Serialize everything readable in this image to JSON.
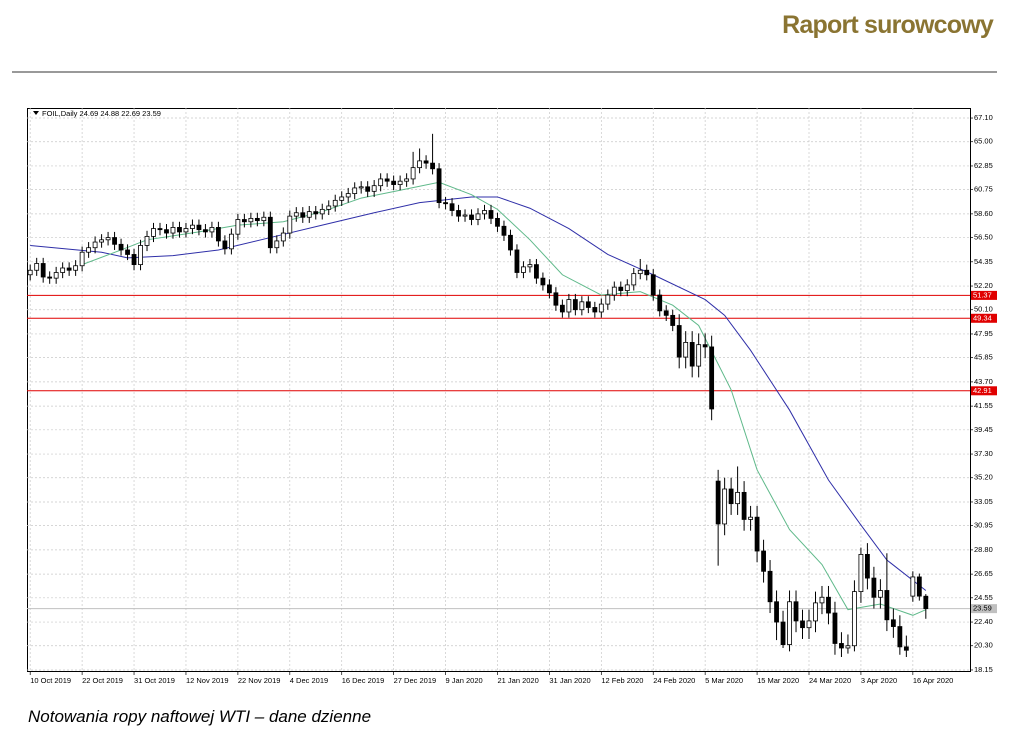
{
  "header": {
    "title": "Raport surowcowy"
  },
  "caption": "Notowania ropy naftowej WTI – dane dzienne",
  "chart_data": {
    "type": "candlestick",
    "symbol": "FOIL,Daily",
    "categories": [
      "10 Oct 2019",
      null,
      null,
      null,
      null,
      null,
      null,
      null,
      "22 Oct 2019",
      null,
      null,
      null,
      null,
      null,
      null,
      null,
      "31 Oct 2019",
      null,
      null,
      null,
      null,
      null,
      null,
      null,
      "12 Nov 2019",
      null,
      null,
      null,
      null,
      null,
      null,
      null,
      "22 Nov 2019",
      null,
      null,
      null,
      null,
      null,
      null,
      null,
      "4 Dec 2019",
      null,
      null,
      null,
      null,
      null,
      null,
      null,
      "16 Dec 2019",
      null,
      null,
      null,
      null,
      null,
      null,
      null,
      "27 Dec 2019",
      null,
      null,
      null,
      null,
      null,
      null,
      null,
      "9 Jan 2020",
      null,
      null,
      null,
      null,
      null,
      null,
      null,
      "21 Jan 2020",
      null,
      null,
      null,
      null,
      null,
      null,
      null,
      "31 Jan 2020",
      null,
      null,
      null,
      null,
      null,
      null,
      null,
      "12 Feb 2020",
      null,
      null,
      null,
      null,
      null,
      null,
      null,
      "24 Feb 2020",
      null,
      null,
      null,
      null,
      null,
      null,
      null,
      "5 Mar 2020",
      null,
      null,
      null,
      null,
      null,
      null,
      null,
      "15 Mar 2020",
      null,
      null,
      null,
      null,
      null,
      null,
      null,
      "24 Mar 2020",
      null,
      null,
      null,
      null,
      null,
      null,
      null,
      "3 Apr 2020",
      null,
      null,
      null,
      null,
      null,
      null,
      null,
      "16 Apr 2020",
      null,
      null
    ],
    "open": [
      53.2,
      53.6,
      54.2,
      53.0,
      52.9,
      53.4,
      53.8,
      53.6,
      54.0,
      55.2,
      55.6,
      56.1,
      56.3,
      56.5,
      55.9,
      55.4,
      55.0,
      54.1,
      55.8,
      56.6,
      57.3,
      57.2,
      56.9,
      57.4,
      57.0,
      57.3,
      57.6,
      57.2,
      57.0,
      57.4,
      56.2,
      55.5,
      56.8,
      58.1,
      57.9,
      58.2,
      58.0,
      58.3,
      55.6,
      56.2,
      56.9,
      58.4,
      58.7,
      58.3,
      58.8,
      58.6,
      59.0,
      59.3,
      59.8,
      60.1,
      60.4,
      60.9,
      61.0,
      60.6,
      61.1,
      61.7,
      61.5,
      61.2,
      61.5,
      61.7,
      62.7,
      63.3,
      63.1,
      62.6,
      59.6,
      59.5,
      58.9,
      58.4,
      58.5,
      58.1,
      58.6,
      58.9,
      58.2,
      57.5,
      56.7,
      55.4,
      53.4,
      53.9,
      54.1,
      52.9,
      52.3,
      51.6,
      50.5,
      49.9,
      51.0,
      50.1,
      50.8,
      50.3,
      49.9,
      50.6,
      51.4,
      52.1,
      51.8,
      52.3,
      53.3,
      53.6,
      53.2,
      51.4,
      50.0,
      49.6,
      48.7,
      45.9,
      47.2,
      45.1,
      47.0,
      46.8,
      34.9,
      31.1,
      34.2,
      32.9,
      33.9,
      31.5,
      31.7,
      28.7,
      26.9,
      24.2,
      22.4,
      20.4,
      24.2,
      22.5,
      21.9,
      22.5,
      24.1,
      24.6,
      23.2,
      20.5,
      20.1,
      20.3,
      25.1,
      28.4,
      26.3,
      24.6,
      25.2,
      22.6,
      22.0,
      20.2,
      24.7,
      26.4,
      24.69
    ],
    "high": [
      54.1,
      54.7,
      54.7,
      53.5,
      53.9,
      54.3,
      54.3,
      54.5,
      55.7,
      56.1,
      56.6,
      56.8,
      57.0,
      57.0,
      56.4,
      55.9,
      55.5,
      56.3,
      57.1,
      57.8,
      57.8,
      57.7,
      57.9,
      57.9,
      57.8,
      58.1,
      58.1,
      57.7,
      57.9,
      57.9,
      56.7,
      57.3,
      58.6,
      58.6,
      58.7,
      58.7,
      58.8,
      58.8,
      56.7,
      57.4,
      58.9,
      59.2,
      59.2,
      59.3,
      59.3,
      59.5,
      59.8,
      60.3,
      60.6,
      60.9,
      61.4,
      61.5,
      61.5,
      61.6,
      62.2,
      62.2,
      62.0,
      62.0,
      62.2,
      64.1,
      64.4,
      63.8,
      65.7,
      63.1,
      60.1,
      60.0,
      59.4,
      59.0,
      59.0,
      59.1,
      59.4,
      59.4,
      58.7,
      58.0,
      57.2,
      55.9,
      54.4,
      54.6,
      54.6,
      53.4,
      52.8,
      52.1,
      51.0,
      51.5,
      51.5,
      51.3,
      51.3,
      50.8,
      51.1,
      51.9,
      52.6,
      52.6,
      52.8,
      53.8,
      54.6,
      54.1,
      53.7,
      51.9,
      50.5,
      50.1,
      49.7,
      48.2,
      48.2,
      48.0,
      48.0,
      47.8,
      35.9,
      35.2,
      35.2,
      36.2,
      34.9,
      32.7,
      32.7,
      29.7,
      27.9,
      25.2,
      23.4,
      25.2,
      25.2,
      23.5,
      23.5,
      25.1,
      25.6,
      25.6,
      24.2,
      21.5,
      21.3,
      26.1,
      29.0,
      29.4,
      27.3,
      26.2,
      28.5,
      23.6,
      23.0,
      21.2,
      26.9,
      26.7,
      24.88
    ],
    "low": [
      52.7,
      53.1,
      52.5,
      52.4,
      52.4,
      52.9,
      53.1,
      53.1,
      53.5,
      54.7,
      55.1,
      55.6,
      55.8,
      55.4,
      54.9,
      54.5,
      53.6,
      53.6,
      55.3,
      56.1,
      56.7,
      56.4,
      56.4,
      56.5,
      56.5,
      56.8,
      56.7,
      56.5,
      56.5,
      55.7,
      55.0,
      55.0,
      56.3,
      57.4,
      57.4,
      57.5,
      57.5,
      55.1,
      55.1,
      55.7,
      56.4,
      57.9,
      57.8,
      57.8,
      58.1,
      58.1,
      58.5,
      58.8,
      59.3,
      59.6,
      59.9,
      60.4,
      60.1,
      60.1,
      60.6,
      61.0,
      60.7,
      60.7,
      61.0,
      61.2,
      62.2,
      62.6,
      62.1,
      59.1,
      59.0,
      58.4,
      57.9,
      57.9,
      57.6,
      57.6,
      58.1,
      57.7,
      57.0,
      56.2,
      54.9,
      52.9,
      52.9,
      53.4,
      52.4,
      51.8,
      51.1,
      50.0,
      49.4,
      49.4,
      49.6,
      49.6,
      49.8,
      49.4,
      49.4,
      50.1,
      50.9,
      51.3,
      51.3,
      51.8,
      52.8,
      52.7,
      50.9,
      49.5,
      49.1,
      48.2,
      44.9,
      44.9,
      44.1,
      44.1,
      45.8,
      40.3,
      27.4,
      30.1,
      31.9,
      31.9,
      30.5,
      30.5,
      27.7,
      25.9,
      23.2,
      20.8,
      20.1,
      19.8,
      21.5,
      20.9,
      20.9,
      21.5,
      23.1,
      22.2,
      19.5,
      19.3,
      19.6,
      19.8,
      24.1,
      25.3,
      23.6,
      23.6,
      21.6,
      21.0,
      19.5,
      19.3,
      24.2,
      24.3,
      22.69
    ],
    "close": [
      53.6,
      54.2,
      53.0,
      52.9,
      53.4,
      53.8,
      53.6,
      54.0,
      55.2,
      55.6,
      56.1,
      56.3,
      56.5,
      55.9,
      55.4,
      55.0,
      54.1,
      55.8,
      56.6,
      57.3,
      57.2,
      56.9,
      57.4,
      57.0,
      57.3,
      57.6,
      57.2,
      57.0,
      57.4,
      56.2,
      55.5,
      56.8,
      58.1,
      57.9,
      58.2,
      58.0,
      58.3,
      55.6,
      56.2,
      56.9,
      58.4,
      58.7,
      58.3,
      58.8,
      58.6,
      59.0,
      59.3,
      59.8,
      60.1,
      60.4,
      60.9,
      61.0,
      60.6,
      61.1,
      61.7,
      61.5,
      61.2,
      61.5,
      61.7,
      62.7,
      63.3,
      63.1,
      62.6,
      59.6,
      59.5,
      58.9,
      58.4,
      58.5,
      58.1,
      58.6,
      58.9,
      58.2,
      57.5,
      56.7,
      55.4,
      53.4,
      53.9,
      54.1,
      52.9,
      52.3,
      51.6,
      50.5,
      49.9,
      51.0,
      50.1,
      50.8,
      50.3,
      49.9,
      50.6,
      51.4,
      52.1,
      51.8,
      52.3,
      53.3,
      53.6,
      53.2,
      51.4,
      50.0,
      49.6,
      48.7,
      45.9,
      47.2,
      45.1,
      47.0,
      46.8,
      41.3,
      31.1,
      34.2,
      32.9,
      33.9,
      31.5,
      31.7,
      28.7,
      26.9,
      24.2,
      22.4,
      20.4,
      24.2,
      22.5,
      21.9,
      22.5,
      24.1,
      24.6,
      23.2,
      20.5,
      20.1,
      20.3,
      25.1,
      28.4,
      26.3,
      24.6,
      25.2,
      22.6,
      22.0,
      20.2,
      19.9,
      26.4,
      24.7,
      23.59
    ],
    "up_color": "#ffffff",
    "down_color": "#000000",
    "outline_color": "#000000",
    "series": [
      {
        "color": "#2f2fa8",
        "x": [
          0,
          11,
          15,
          22,
          29,
          37,
          45,
          53,
          60,
          68,
          72,
          77,
          83,
          89,
          96,
          104,
          107,
          111,
          117,
          123,
          128,
          132,
          138
        ],
        "values": [
          55.8,
          55.2,
          54.7,
          54.9,
          55.4,
          56.5,
          57.6,
          58.7,
          59.6,
          60.1,
          60.1,
          59.1,
          57.3,
          55.0,
          53.2,
          51.0,
          49.6,
          46.5,
          41.2,
          35.0,
          31.0,
          27.9,
          25.2
        ]
      },
      {
        "color": "#5fb98a",
        "x": [
          8,
          14,
          18,
          26,
          32,
          39,
          45,
          51,
          57,
          63,
          68,
          72,
          77,
          82,
          88,
          94,
          99,
          103,
          108,
          112,
          117,
          122,
          126,
          131,
          136,
          138
        ],
        "values": [
          54.1,
          55.4,
          56.3,
          57.0,
          57.6,
          57.9,
          58.8,
          60.0,
          60.7,
          61.4,
          60.3,
          59.0,
          56.3,
          53.2,
          51.4,
          51.7,
          50.5,
          48.7,
          43.0,
          35.9,
          30.6,
          27.5,
          23.5,
          24.0,
          23.0,
          23.5
        ]
      }
    ],
    "levels": [
      {
        "value": 51.37,
        "color": "#e00000"
      },
      {
        "value": 49.34,
        "color": "#e00000"
      },
      {
        "value": 42.91,
        "color": "#e00000"
      }
    ],
    "price_line": {
      "value": 23.59,
      "color": "#c0c0c0"
    },
    "ylim": [
      17.97,
      67.99
    ],
    "yticks": [
      {
        "value": 67.1,
        "label": "67.10"
      },
      {
        "value": 65.0,
        "label": "65.00"
      },
      {
        "value": 62.85,
        "label": "62.85"
      },
      {
        "value": 60.75,
        "label": "60.75"
      },
      {
        "value": 58.6,
        "label": "58.60"
      },
      {
        "value": 56.5,
        "label": "56.50"
      },
      {
        "value": 54.35,
        "label": "54.35"
      },
      {
        "value": 52.2,
        "label": "52.20"
      },
      {
        "value": 50.1,
        "label": "50.10"
      },
      {
        "value": 47.95,
        "label": "47.95"
      },
      {
        "value": 45.85,
        "label": "45.85"
      },
      {
        "value": 43.7,
        "label": "43.70"
      },
      {
        "value": 41.55,
        "label": "41.55"
      },
      {
        "value": 39.45,
        "label": "39.45"
      },
      {
        "value": 37.3,
        "label": "37.30"
      },
      {
        "value": 35.2,
        "label": "35.20"
      },
      {
        "value": 33.05,
        "label": "33.05"
      },
      {
        "value": 30.95,
        "label": "30.95"
      },
      {
        "value": 28.8,
        "label": "28.80"
      },
      {
        "value": 26.65,
        "label": "26.65"
      },
      {
        "value": 24.55,
        "label": "24.55"
      },
      {
        "value": 22.4,
        "label": "22.40"
      },
      {
        "value": 20.3,
        "label": "20.30"
      },
      {
        "value": 18.15,
        "label": "18.15"
      }
    ],
    "grid": true
  }
}
